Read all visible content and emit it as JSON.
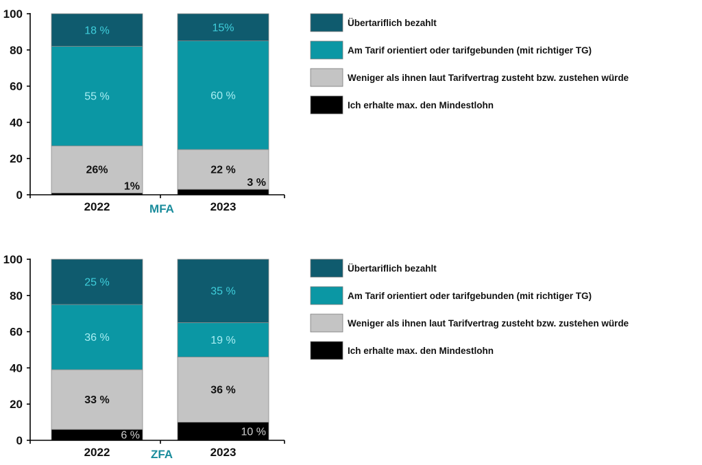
{
  "chart_data": [
    {
      "type": "bar",
      "stacked": true,
      "group_label": "MFA",
      "group_label_color": "#1a8c9c",
      "categories": [
        "2022",
        "2023"
      ],
      "ylim": [
        0,
        100
      ],
      "yticks": [
        0,
        20,
        40,
        60,
        80,
        100
      ],
      "grid": false,
      "legend_position": "right",
      "series": [
        {
          "name": "Ich erhalte max. den Mindestlohn",
          "color": "#000000",
          "label_color": "#cfcfcf",
          "values": [
            1,
            3
          ],
          "labels": [
            "1%",
            "3 %"
          ]
        },
        {
          "name": "Weniger als ihnen laut Tarifvertrag zusteht bzw. zustehen würde",
          "color": "#c4c4c4",
          "label_color": "#111111",
          "values": [
            26,
            22
          ],
          "labels": [
            "26%",
            "22 %"
          ]
        },
        {
          "name": "Am Tarif orientiert oder tarifgebunden (mit richtiger TG)",
          "color": "#0b97a4",
          "label_color": "#a9eef3",
          "values": [
            55,
            60
          ],
          "labels": [
            "55 %",
            "60 %"
          ]
        },
        {
          "name": "Übertariflich bezahlt",
          "color": "#0f5b6e",
          "label_color": "#3fcfdc",
          "values": [
            18,
            15
          ],
          "labels": [
            "18 %",
            "15%"
          ]
        }
      ]
    },
    {
      "type": "bar",
      "stacked": true,
      "group_label": "ZFA",
      "group_label_color": "#1a8c9c",
      "categories": [
        "2022",
        "2023"
      ],
      "ylim": [
        0,
        100
      ],
      "yticks": [
        0,
        20,
        40,
        60,
        80,
        100
      ],
      "grid": false,
      "legend_position": "right",
      "series": [
        {
          "name": "Ich erhalte max. den Mindestlohn",
          "color": "#000000",
          "label_color": "#cfcfcf",
          "values": [
            6,
            10
          ],
          "labels": [
            "6 %",
            "10 %"
          ]
        },
        {
          "name": "Weniger als ihnen laut Tarifvertrag zusteht bzw. zustehen würde",
          "color": "#c4c4c4",
          "label_color": "#111111",
          "values": [
            33,
            36
          ],
          "labels": [
            "33 %",
            "36 %"
          ]
        },
        {
          "name": "Am Tarif orientiert oder tarifgebunden (mit richtiger TG)",
          "color": "#0b97a4",
          "label_color": "#a9eef3",
          "values": [
            36,
            19
          ],
          "labels": [
            "36 %",
            "19 %"
          ]
        },
        {
          "name": "Übertariflich bezahlt",
          "color": "#0f5b6e",
          "label_color": "#3fcfdc",
          "values": [
            25,
            35
          ],
          "labels": [
            "25 %",
            "35 %"
          ]
        }
      ]
    }
  ]
}
